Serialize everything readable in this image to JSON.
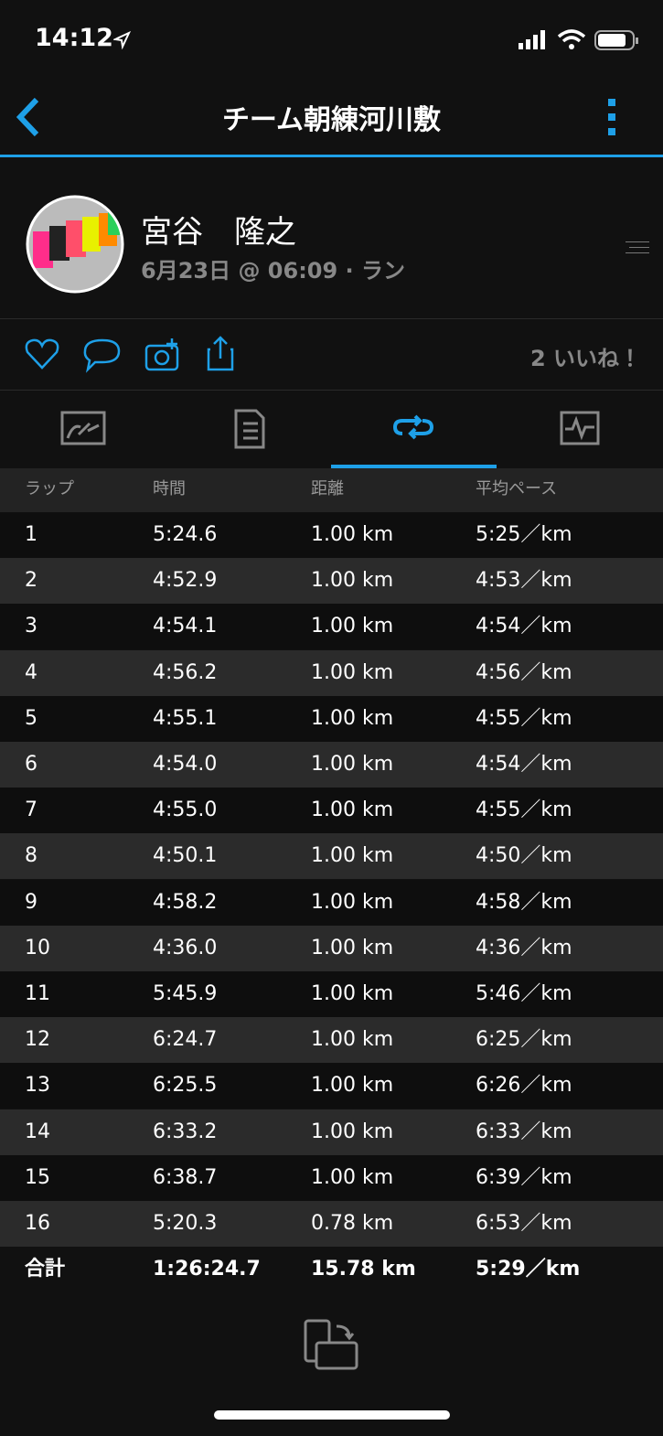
{
  "status_bar": {
    "time": "14:12"
  },
  "header": {
    "title": "チーム朝練河川敷"
  },
  "profile": {
    "name": "宮谷　隆之",
    "meta": "6月23日 @ 06:09 · ラン"
  },
  "actions": {
    "likes": "2 いいね！"
  },
  "table": {
    "columns": [
      "ラップ",
      "時間",
      "距離",
      "平均ペース"
    ],
    "rows": [
      [
        "1",
        "5:24.6",
        "1.00 km",
        "5:25／km"
      ],
      [
        "2",
        "4:52.9",
        "1.00 km",
        "4:53／km"
      ],
      [
        "3",
        "4:54.1",
        "1.00 km",
        "4:54／km"
      ],
      [
        "4",
        "4:56.2",
        "1.00 km",
        "4:56／km"
      ],
      [
        "5",
        "4:55.1",
        "1.00 km",
        "4:55／km"
      ],
      [
        "6",
        "4:54.0",
        "1.00 km",
        "4:54／km"
      ],
      [
        "7",
        "4:55.0",
        "1.00 km",
        "4:55／km"
      ],
      [
        "8",
        "4:50.1",
        "1.00 km",
        "4:50／km"
      ],
      [
        "9",
        "4:58.2",
        "1.00 km",
        "4:58／km"
      ],
      [
        "10",
        "4:36.0",
        "1.00 km",
        "4:36／km"
      ],
      [
        "11",
        "5:45.9",
        "1.00 km",
        "5:46／km"
      ],
      [
        "12",
        "6:24.7",
        "1.00 km",
        "6:25／km"
      ],
      [
        "13",
        "6:25.5",
        "1.00 km",
        "6:26／km"
      ],
      [
        "14",
        "6:33.2",
        "1.00 km",
        "6:33／km"
      ],
      [
        "15",
        "6:38.7",
        "1.00 km",
        "6:39／km"
      ],
      [
        "16",
        "5:20.3",
        "0.78 km",
        "6:53／km"
      ]
    ],
    "total": [
      "合計",
      "1:26:24.7",
      "15.78 km",
      "5:29／km"
    ]
  }
}
